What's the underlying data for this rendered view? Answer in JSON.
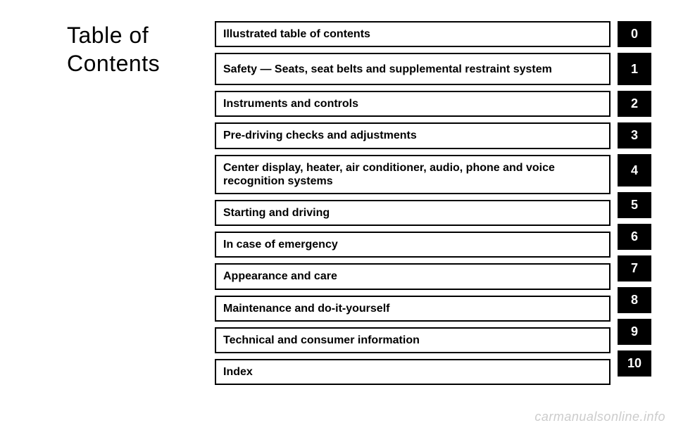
{
  "title_line1": "Table of",
  "title_line2": "Contents",
  "items": [
    {
      "label": "Illustrated table of contents",
      "number": "0",
      "tall": false
    },
    {
      "label": "Safety — Seats, seat belts and supplemental restraint system",
      "number": "1",
      "tall": true
    },
    {
      "label": "Instruments and controls",
      "number": "2",
      "tall": false
    },
    {
      "label": "Pre-driving checks and adjustments",
      "number": "3",
      "tall": false
    },
    {
      "label": "Center display, heater, air conditioner, audio, phone and voice recognition systems",
      "number": "4",
      "tall": true
    },
    {
      "label": "Starting and driving",
      "number": "5",
      "tall": false
    },
    {
      "label": "In case of emergency",
      "number": "6",
      "tall": false
    },
    {
      "label": "Appearance and care",
      "number": "7",
      "tall": false
    },
    {
      "label": "Maintenance and do-it-yourself",
      "number": "8",
      "tall": false
    },
    {
      "label": "Technical and consumer information",
      "number": "9",
      "tall": false
    },
    {
      "label": "Index",
      "number": "10",
      "tall": false
    }
  ],
  "watermark": "carmanualsonline.info",
  "colors": {
    "background": "#ffffff",
    "text": "#000000",
    "box_border": "#000000",
    "number_bg": "#000000",
    "number_text": "#ffffff",
    "watermark": "#cccccc"
  },
  "fonts": {
    "title_size": 32,
    "item_size": 16,
    "number_size": 18,
    "watermark_size": 18
  }
}
